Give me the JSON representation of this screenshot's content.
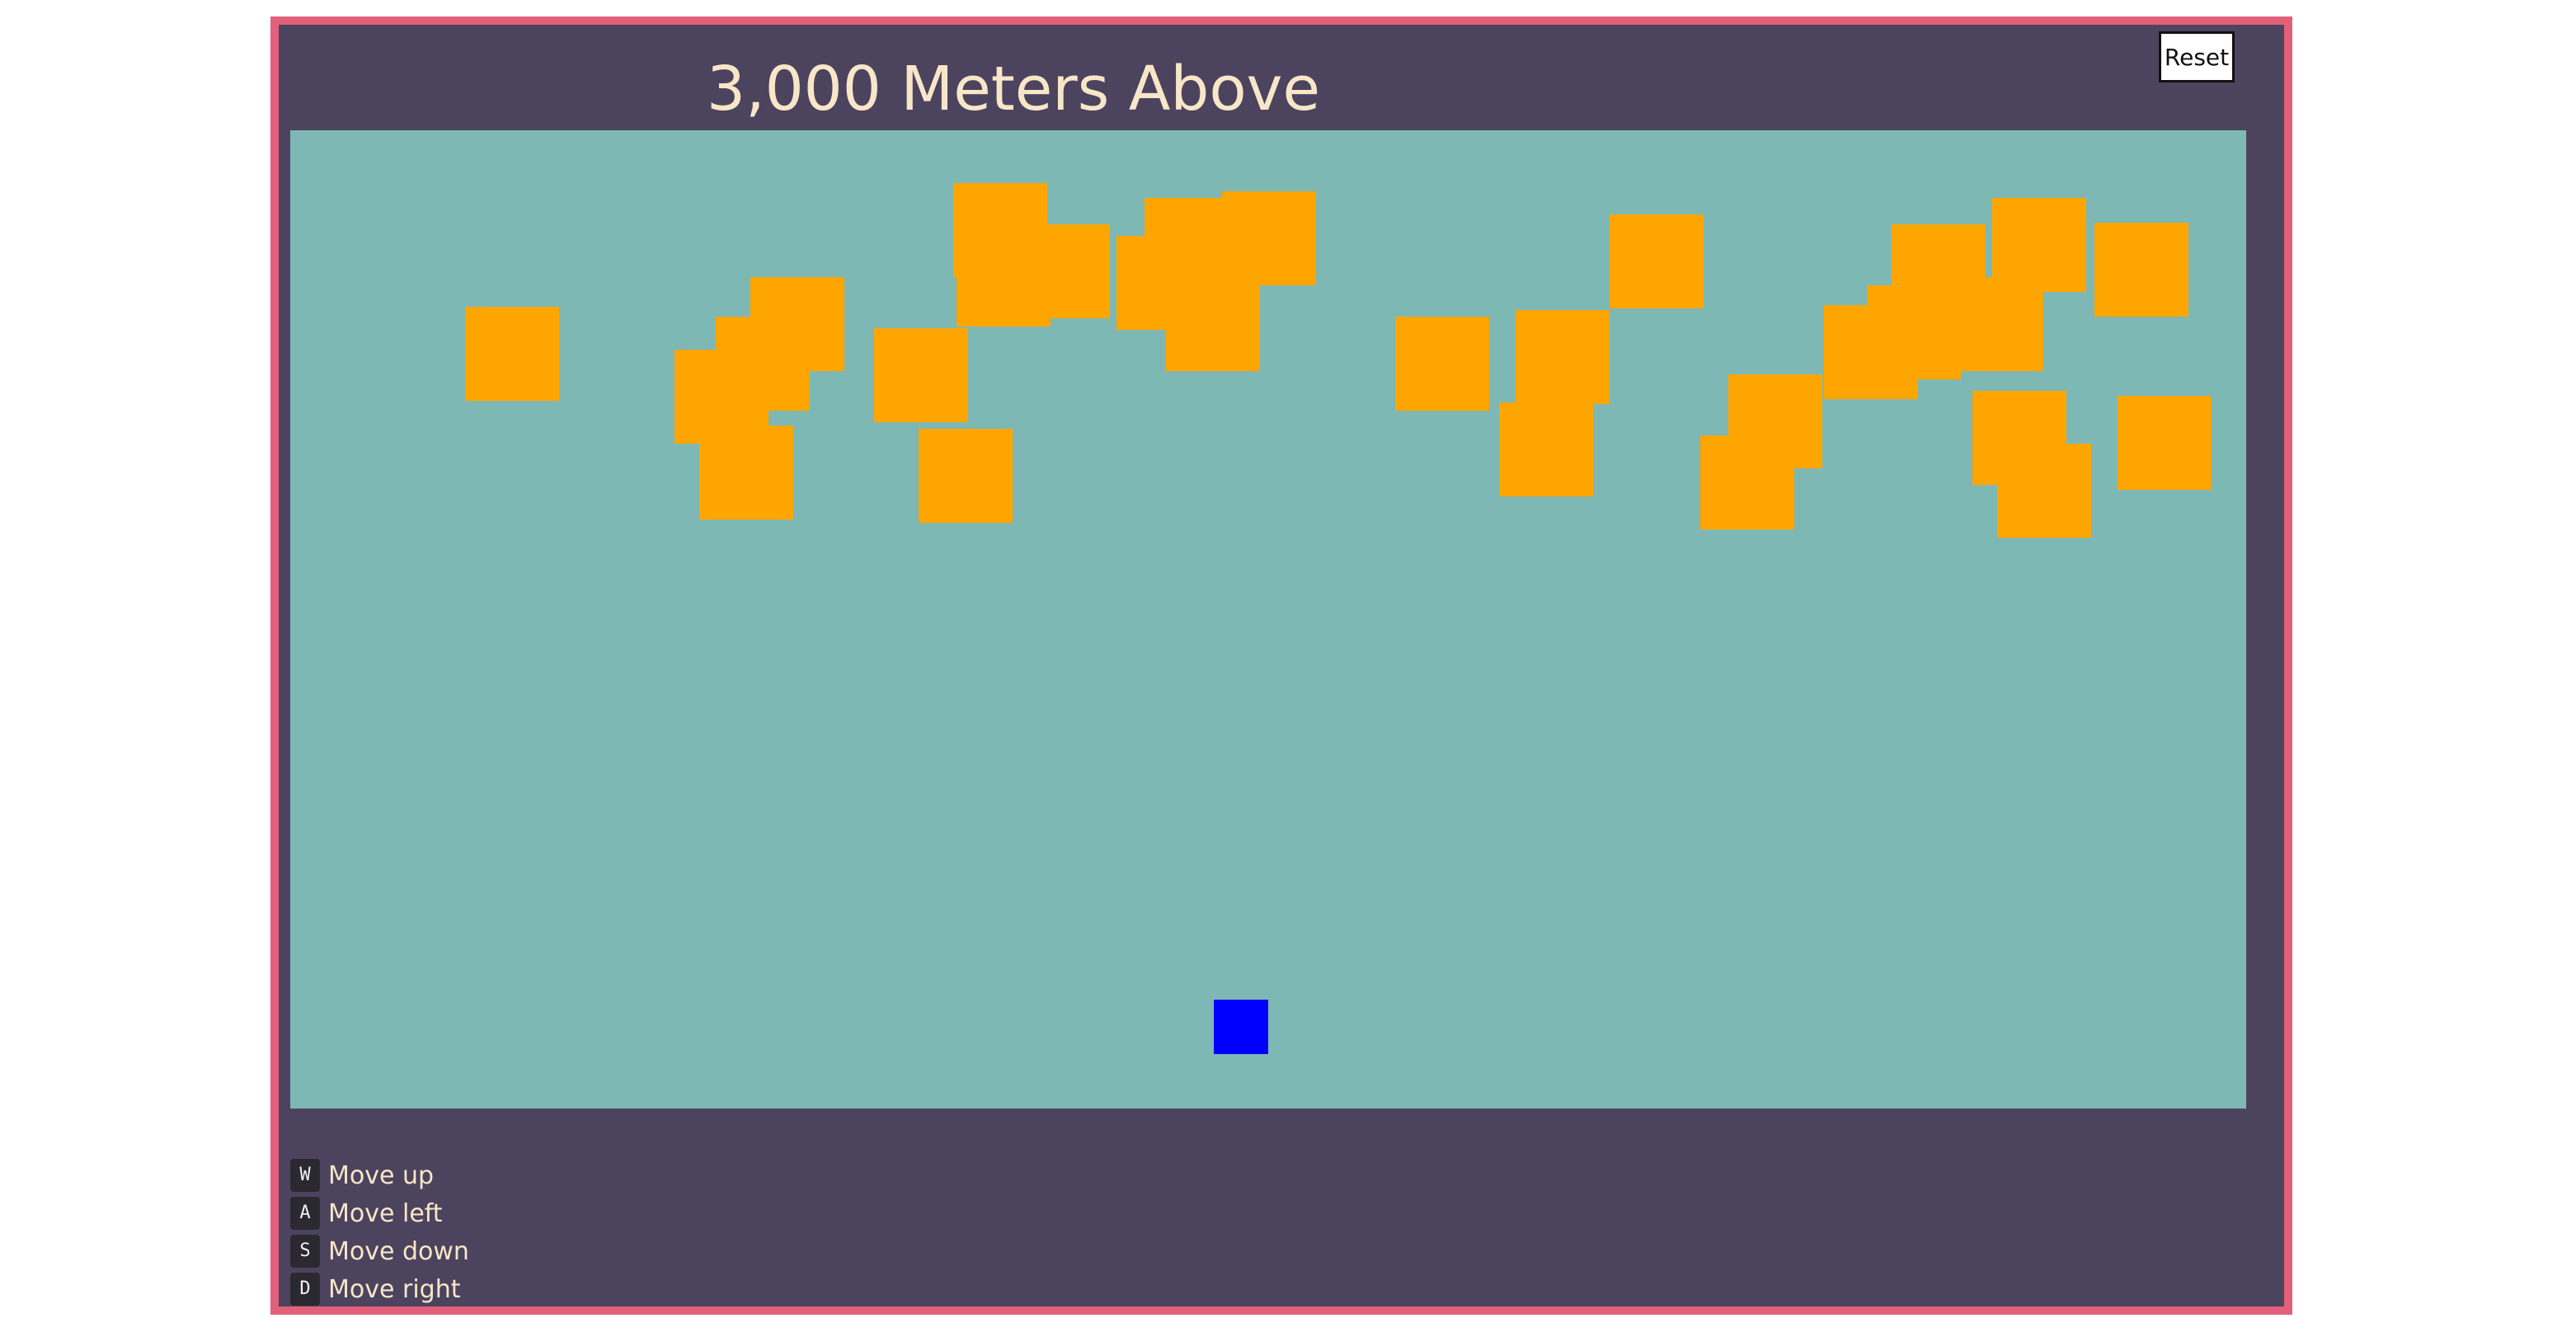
{
  "game": {
    "title": "3,000 Meters Above",
    "reset_label": "Reset"
  },
  "controls": [
    {
      "key": "W",
      "label": "Move up"
    },
    {
      "key": "A",
      "label": "Move left"
    },
    {
      "key": "S",
      "label": "Move down"
    },
    {
      "key": "D",
      "label": "Move right"
    }
  ],
  "colors": {
    "frame_border": "#e2607a",
    "frame_background": "#4c445e",
    "playfield": "#7eb8b5",
    "obstacle": "#ffa500",
    "player": "#0000ff",
    "title_text": "#f8e6c8"
  }
}
